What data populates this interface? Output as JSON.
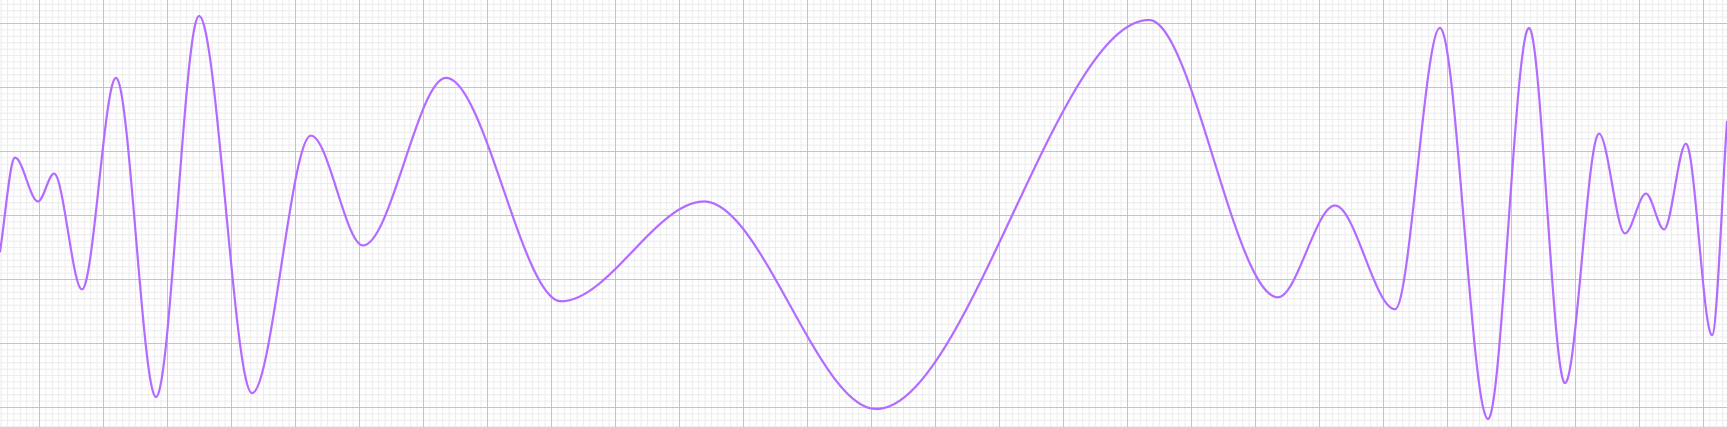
{
  "chart_data": {
    "type": "line",
    "title": "",
    "xlabel": "",
    "ylabel": "",
    "grid": true,
    "legend": "none",
    "xlim": [
      0,
      1727
    ],
    "ylim": [
      -5,
      5
    ],
    "colors": {
      "line": "#b36bff",
      "grid_major": "#c4c4c4",
      "grid_minor": "#ececec",
      "background": "#ffffff"
    },
    "series": [
      {
        "points": [
          [
            0,
            -0.95
          ],
          [
            15,
            1.4
          ],
          [
            38,
            0.3
          ],
          [
            54,
            1.0
          ],
          [
            82,
            -1.9
          ],
          [
            116,
            3.4
          ],
          [
            156,
            -4.6
          ],
          [
            199,
            4.95
          ],
          [
            252,
            -4.5
          ],
          [
            311,
            1.95
          ],
          [
            363,
            -0.8
          ],
          [
            446,
            3.4
          ],
          [
            561,
            -2.2
          ],
          [
            704,
            0.3
          ],
          [
            876,
            -4.9
          ],
          [
            1149,
            4.85
          ],
          [
            1278,
            -2.1
          ],
          [
            1335,
            0.2
          ],
          [
            1395,
            -2.4
          ],
          [
            1440,
            4.65
          ],
          [
            1488,
            -5.15
          ],
          [
            1529,
            4.65
          ],
          [
            1565,
            -4.25
          ],
          [
            1599,
            2.0
          ],
          [
            1625,
            -0.5
          ],
          [
            1646,
            0.5
          ],
          [
            1664,
            -0.4
          ],
          [
            1686,
            1.75
          ],
          [
            1712,
            -3.05
          ],
          [
            1727,
            2.3
          ]
        ]
      }
    ]
  }
}
